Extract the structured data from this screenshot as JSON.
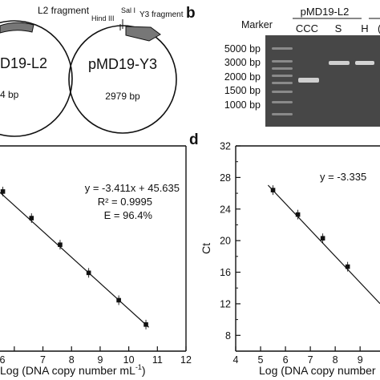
{
  "panel_a": {
    "plasmid_left": {
      "name": "pMD19-L2",
      "name_visible": "D19-L2",
      "size_visible": "4 bp",
      "fragment": "L2 fragment"
    },
    "plasmid_right": {
      "name": "pMD19-Y3",
      "size": "2979 bp",
      "fragment": "Y3 fragment",
      "site1": "Sal I",
      "site2": "Hind III"
    }
  },
  "panel_b": {
    "letter": "b",
    "marker_label": "Marker",
    "group_label": "pMD19-L2",
    "lanes": [
      "CCC",
      "S",
      "H",
      "("
    ],
    "ladder": [
      "5000 bp",
      "3000 bp",
      "2000 bp",
      "1500 bp",
      "1000 bp"
    ]
  },
  "panel_c": {
    "equation": "y = -3.411x + 45.635",
    "r2": "R² = 0.9995",
    "efficiency": "E = 96.4%",
    "xlabel": "Log (DNA copy number mL⁻¹)",
    "xlabel_visible": "Log (DNA copy number mL",
    "xlabel_sup": "-1",
    "xlabel_close": ")"
  },
  "panel_d": {
    "letter": "d",
    "equation_visible": "y = -3.335",
    "ylabel": "Ct",
    "xlabel": "Log (DNA copy number",
    "xlabel_visible": "Log (DNA copy number"
  },
  "chart_data": [
    {
      "type": "scatter",
      "panel": "c",
      "x": [
        5.6,
        6.6,
        7.6,
        8.6,
        9.65,
        10.6
      ],
      "y": [
        27.0,
        23.5,
        20.0,
        16.3,
        12.7,
        9.5
      ],
      "x_ticks": [
        "6",
        "7",
        "8",
        "9",
        "10",
        "11",
        "12"
      ],
      "fit": {
        "slope": -3.411,
        "intercept": 45.635
      },
      "xlim": [
        5.5,
        12
      ],
      "ylim": [
        6,
        33
      ]
    },
    {
      "type": "scatter",
      "panel": "d",
      "x": [
        5.5,
        6.5,
        7.5,
        8.5
      ],
      "y": [
        26.4,
        23.3,
        20.3,
        16.7
      ],
      "x_ticks": [
        "4",
        "5",
        "6",
        "7",
        "8",
        "9"
      ],
      "y_ticks": [
        "8",
        "12",
        "16",
        "20",
        "24",
        "28",
        "32"
      ],
      "fit": {
        "slope": -3.335,
        "intercept": 44.7
      },
      "xlim": [
        4,
        9.8
      ],
      "ylim": [
        6,
        32
      ]
    }
  ]
}
